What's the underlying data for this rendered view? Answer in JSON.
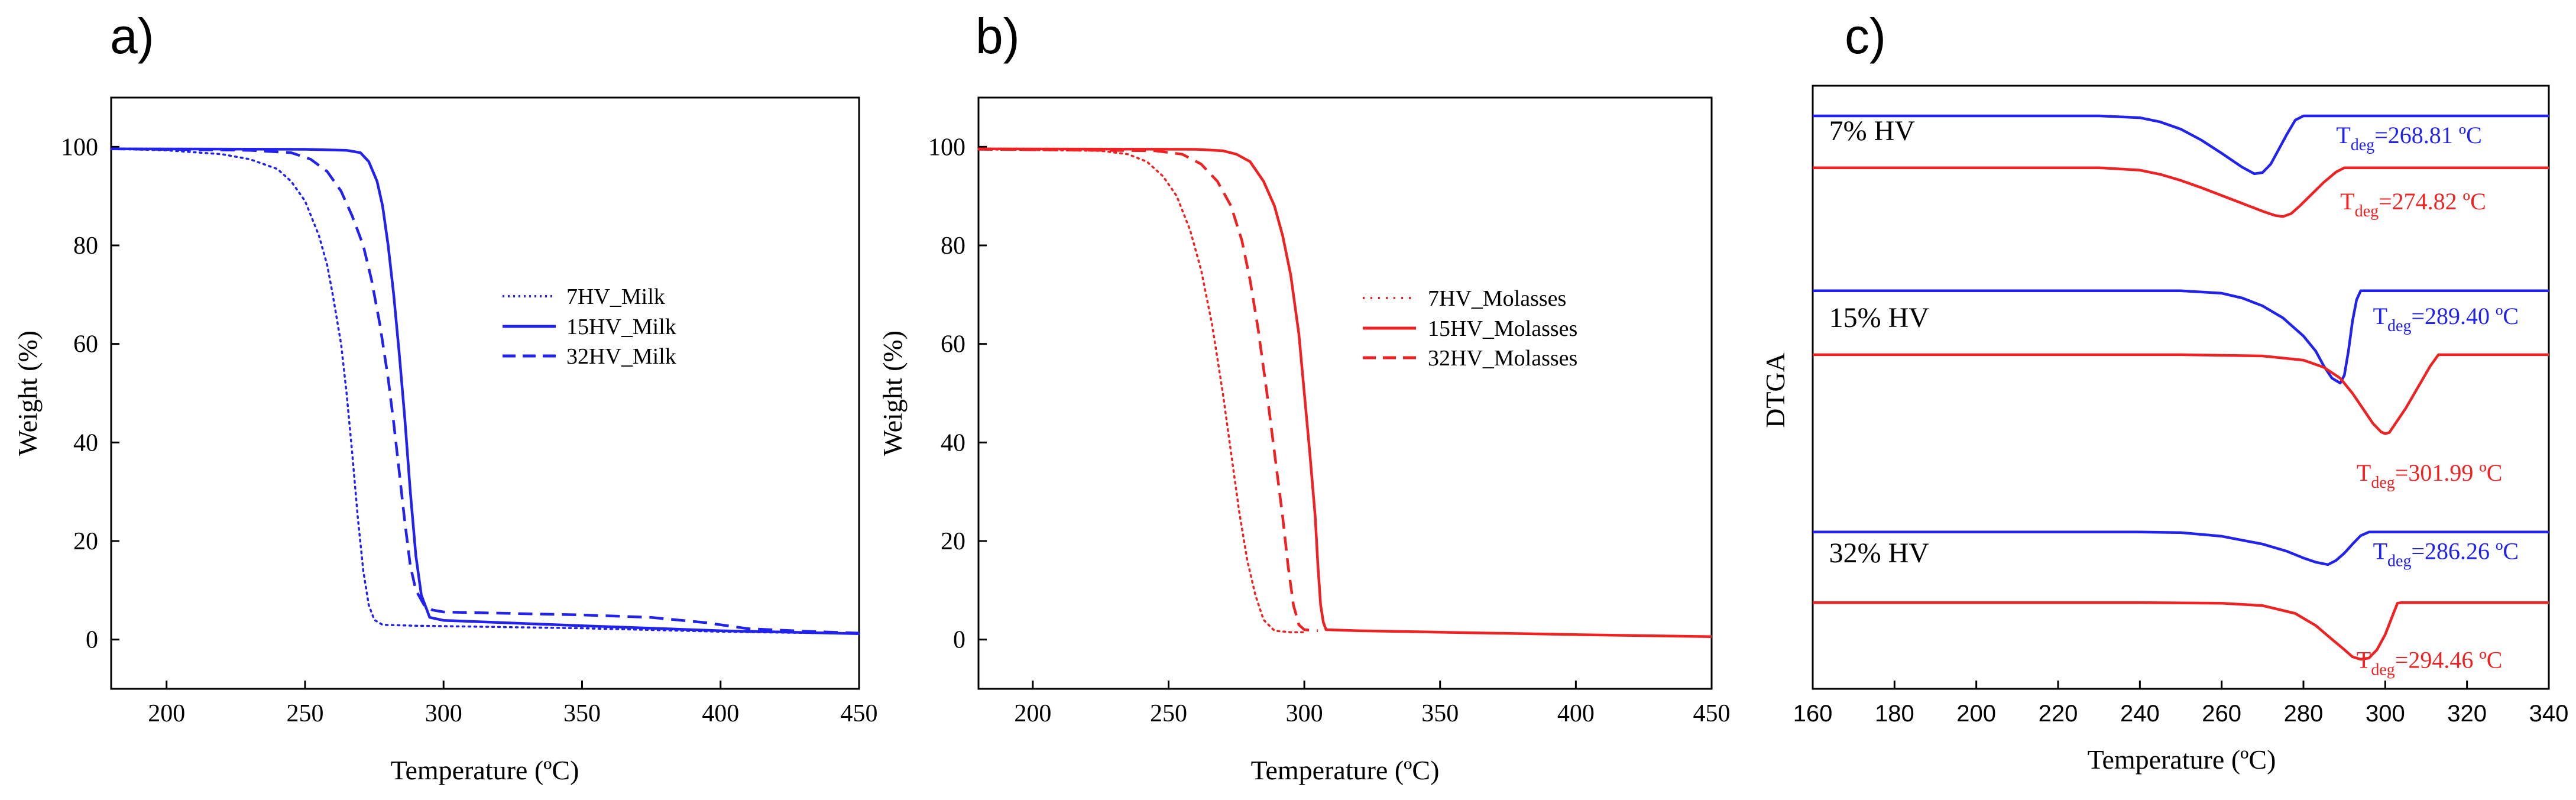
{
  "panels": [
    {
      "label": "a)",
      "type": "line",
      "xlabel": "Temperature (ºC)",
      "ylabel": "Weight (%)",
      "xlim": [
        180,
        450
      ],
      "ylim": [
        -10,
        110
      ],
      "xticks": [
        200,
        250,
        300,
        350,
        400,
        450
      ],
      "yticks": [
        0,
        20,
        40,
        60,
        80,
        100
      ],
      "legend": [
        "7HV_Milk",
        "15HV_Milk",
        "32HV_Milk"
      ],
      "color": "#2222ee",
      "series": [
        {
          "name": "7HV_Milk",
          "dash": "dot",
          "points": [
            [
              180,
              99.6
            ],
            [
              200,
              99.3
            ],
            [
              220,
              98.5
            ],
            [
              230,
              97.5
            ],
            [
              240,
              95.5
            ],
            [
              245,
              93
            ],
            [
              250,
              89
            ],
            [
              255,
              82
            ],
            [
              258,
              76
            ],
            [
              260,
              70
            ],
            [
              263,
              60
            ],
            [
              265,
              50
            ],
            [
              267,
              38
            ],
            [
              269,
              25
            ],
            [
              271,
              14
            ],
            [
              273,
              7
            ],
            [
              275,
              4
            ],
            [
              278,
              3
            ],
            [
              290,
              2.8
            ],
            [
              350,
              2.3
            ],
            [
              400,
              1.6
            ],
            [
              450,
              1.2
            ]
          ]
        },
        {
          "name": "15HV_Milk",
          "dash": "solid",
          "points": [
            [
              180,
              99.6
            ],
            [
              250,
              99.5
            ],
            [
              265,
              99.3
            ],
            [
              270,
              98.8
            ],
            [
              273,
              97
            ],
            [
              276,
              93
            ],
            [
              278,
              88
            ],
            [
              280,
              80
            ],
            [
              282,
              70
            ],
            [
              284,
              58
            ],
            [
              286,
              45
            ],
            [
              288,
              30
            ],
            [
              290,
              17
            ],
            [
              292,
              9
            ],
            [
              295,
              4.5
            ],
            [
              300,
              3.9
            ],
            [
              350,
              2.8
            ],
            [
              400,
              1.8
            ],
            [
              450,
              1.2
            ]
          ]
        },
        {
          "name": "32HV_Milk",
          "dash": "dash",
          "points": [
            [
              180,
              99.6
            ],
            [
              230,
              99.3
            ],
            [
              245,
              98.8
            ],
            [
              252,
              97.5
            ],
            [
              258,
              95
            ],
            [
              263,
              91
            ],
            [
              267,
              86
            ],
            [
              271,
              80
            ],
            [
              274,
              73
            ],
            [
              277,
              64
            ],
            [
              280,
              53
            ],
            [
              282,
              44
            ],
            [
              284,
              34
            ],
            [
              286,
              24
            ],
            [
              288,
              15
            ],
            [
              290,
              10
            ],
            [
              293,
              7
            ],
            [
              296,
              6
            ],
            [
              300,
              5.6
            ],
            [
              350,
              5
            ],
            [
              375,
              4.5
            ],
            [
              395,
              3.4
            ],
            [
              410,
              2.2
            ],
            [
              430,
              1.7
            ],
            [
              450,
              1.3
            ]
          ]
        }
      ]
    },
    {
      "label": "b)",
      "type": "line",
      "xlabel": "Temperature (ºC)",
      "ylabel": "Weight (%)",
      "xlim": [
        180,
        450
      ],
      "ylim": [
        -10,
        110
      ],
      "xticks": [
        200,
        250,
        300,
        350,
        400,
        450
      ],
      "yticks": [
        0,
        20,
        40,
        60,
        80,
        100
      ],
      "legend": [
        "7HV_Molasses",
        "15HV_Molasses",
        "32HV_Molasses"
      ],
      "color": "#ee2222",
      "series": [
        {
          "name": "7HV_Molasses",
          "dash": "dot",
          "points": [
            [
              180,
              99.5
            ],
            [
              225,
              99.2
            ],
            [
              235,
              98.5
            ],
            [
              242,
              97
            ],
            [
              248,
              94
            ],
            [
              253,
              90
            ],
            [
              258,
              83
            ],
            [
              262,
              75
            ],
            [
              266,
              64
            ],
            [
              270,
              50
            ],
            [
              273,
              38
            ],
            [
              276,
              26
            ],
            [
              279,
              16
            ],
            [
              282,
              9
            ],
            [
              285,
              4
            ],
            [
              289,
              1.8
            ],
            [
              295,
              1.5
            ],
            [
              300,
              1.5
            ]
          ]
        },
        {
          "name": "15HV_Molasses",
          "dash": "solid",
          "points": [
            [
              180,
              99.6
            ],
            [
              260,
              99.5
            ],
            [
              270,
              99.2
            ],
            [
              275,
              98.5
            ],
            [
              280,
              97
            ],
            [
              285,
              93
            ],
            [
              289,
              88
            ],
            [
              292,
              82
            ],
            [
              295,
              74
            ],
            [
              298,
              62
            ],
            [
              300,
              50
            ],
            [
              302,
              38
            ],
            [
              304,
              25
            ],
            [
              305,
              15
            ],
            [
              306,
              7
            ],
            [
              307,
              3.5
            ],
            [
              308,
              2
            ],
            [
              320,
              1.8
            ],
            [
              350,
              1.5
            ],
            [
              400,
              1
            ],
            [
              450,
              0.6
            ]
          ]
        },
        {
          "name": "32HV_Molasses",
          "dash": "dash",
          "points": [
            [
              180,
              99.5
            ],
            [
              245,
              99.2
            ],
            [
              255,
              98.5
            ],
            [
              262,
              96.5
            ],
            [
              268,
              93
            ],
            [
              273,
              88
            ],
            [
              277,
              81
            ],
            [
              280,
              73
            ],
            [
              283,
              63
            ],
            [
              286,
              51
            ],
            [
              289,
              38
            ],
            [
              292,
              25
            ],
            [
              294,
              15
            ],
            [
              296,
              7
            ],
            [
              298,
              3
            ],
            [
              300,
              2
            ],
            [
              305,
              1.8
            ]
          ]
        }
      ]
    },
    {
      "label": "c)",
      "type": "line",
      "xlabel": "Temperature (ºC)",
      "ylabel": "DTGA",
      "xlim": [
        160,
        340
      ],
      "ylim": [
        0,
        100
      ],
      "xticks": [
        160,
        180,
        200,
        220,
        240,
        260,
        280,
        300,
        320,
        340
      ],
      "yticks": [],
      "groups": [
        "7% HV",
        "15% HV",
        "32% HV"
      ],
      "annotations": [
        {
          "sub": "deg",
          "value": "=268.81 ºC",
          "color": "#2222ee",
          "x": 288,
          "y": 90.5
        },
        {
          "sub": "deg",
          "value": "=274.82 ºC",
          "color": "#ee2222",
          "x": 289,
          "y": 79.5
        },
        {
          "sub": "deg",
          "value": "=289.40 ºC",
          "color": "#2222ee",
          "x": 297,
          "y": 60.5
        },
        {
          "sub": "deg",
          "value": "=301.99 ºC",
          "color": "#ee2222",
          "x": 293,
          "y": 34.5
        },
        {
          "sub": "deg",
          "value": "=286.26 ºC",
          "color": "#2222ee",
          "x": 297,
          "y": 21.5
        },
        {
          "sub": "deg",
          "value": "=294.46 ºC",
          "color": "#ee2222",
          "x": 293,
          "y": 3.5
        }
      ],
      "group_label_positions": [
        {
          "x": 164,
          "y": 91
        },
        {
          "x": 164,
          "y": 60
        },
        {
          "x": 164,
          "y": 21
        }
      ],
      "series": [
        {
          "name": "7% HV blue",
          "color": "#2222ee",
          "points": [
            [
              160,
              95
            ],
            [
              230,
              95
            ],
            [
              240,
              94.7
            ],
            [
              245,
              94
            ],
            [
              250,
              92.8
            ],
            [
              255,
              91
            ],
            [
              260,
              88.8
            ],
            [
              265,
              86.5
            ],
            [
              268,
              85.4
            ],
            [
              270,
              85.6
            ],
            [
              272,
              87
            ],
            [
              274,
              89.5
            ],
            [
              276,
              92
            ],
            [
              278,
              94.3
            ],
            [
              280,
              95
            ],
            [
              340,
              95
            ]
          ]
        },
        {
          "name": "7% HV red",
          "color": "#ee2222",
          "points": [
            [
              160,
              86.4
            ],
            [
              230,
              86.4
            ],
            [
              240,
              86
            ],
            [
              245,
              85.3
            ],
            [
              250,
              84.3
            ],
            [
              255,
              83.1
            ],
            [
              260,
              81.8
            ],
            [
              265,
              80.5
            ],
            [
              270,
              79.2
            ],
            [
              273,
              78.5
            ],
            [
              275,
              78.3
            ],
            [
              277,
              78.8
            ],
            [
              279,
              80
            ],
            [
              282,
              82
            ],
            [
              285,
              84
            ],
            [
              288,
              85.7
            ],
            [
              290,
              86.4
            ],
            [
              340,
              86.4
            ]
          ]
        },
        {
          "name": "15% HV blue",
          "color": "#2222ee",
          "points": [
            [
              160,
              66
            ],
            [
              250,
              66
            ],
            [
              260,
              65.6
            ],
            [
              265,
              64.8
            ],
            [
              270,
              63.5
            ],
            [
              275,
              61.5
            ],
            [
              280,
              58.5
            ],
            [
              283,
              56
            ],
            [
              285,
              53.5
            ],
            [
              287,
              51.5
            ],
            [
              289,
              50.7
            ],
            [
              290,
              52
            ],
            [
              291,
              56
            ],
            [
              292,
              61
            ],
            [
              293,
              64.5
            ],
            [
              294,
              66
            ],
            [
              340,
              66
            ]
          ]
        },
        {
          "name": "15% HV red",
          "color": "#ee2222",
          "points": [
            [
              160,
              55.4
            ],
            [
              250,
              55.4
            ],
            [
              270,
              55.2
            ],
            [
              280,
              54.5
            ],
            [
              285,
              53.3
            ],
            [
              289,
              51.5
            ],
            [
              292,
              49
            ],
            [
              295,
              46
            ],
            [
              297,
              44
            ],
            [
              299,
              42.6
            ],
            [
              300,
              42.3
            ],
            [
              301,
              42.5
            ],
            [
              302,
              43.5
            ],
            [
              305,
              46.5
            ],
            [
              308,
              50
            ],
            [
              311,
              53.5
            ],
            [
              313,
              55.4
            ],
            [
              340,
              55.4
            ]
          ]
        },
        {
          "name": "32% HV blue",
          "color": "#2222ee",
          "points": [
            [
              160,
              26
            ],
            [
              240,
              26
            ],
            [
              250,
              25.9
            ],
            [
              260,
              25.3
            ],
            [
              270,
              24
            ],
            [
              276,
              22.8
            ],
            [
              280,
              21.7
            ],
            [
              283,
              21
            ],
            [
              286,
              20.6
            ],
            [
              288,
              21.3
            ],
            [
              290,
              22.5
            ],
            [
              292,
              24
            ],
            [
              294,
              25.4
            ],
            [
              296,
              26
            ],
            [
              340,
              26
            ]
          ]
        },
        {
          "name": "32% HV red",
          "color": "#ee2222",
          "points": [
            [
              160,
              14.3
            ],
            [
              240,
              14.3
            ],
            [
              260,
              14.2
            ],
            [
              270,
              13.8
            ],
            [
              278,
              12.5
            ],
            [
              283,
              10.5
            ],
            [
              287,
              8.2
            ],
            [
              290,
              6.5
            ],
            [
              292,
              5.3
            ],
            [
              294,
              4.9
            ],
            [
              296,
              5.1
            ],
            [
              298,
              6.5
            ],
            [
              300,
              9
            ],
            [
              302,
              12.5
            ],
            [
              303,
              14.2
            ],
            [
              304,
              14.3
            ],
            [
              340,
              14.3
            ]
          ]
        }
      ]
    }
  ]
}
